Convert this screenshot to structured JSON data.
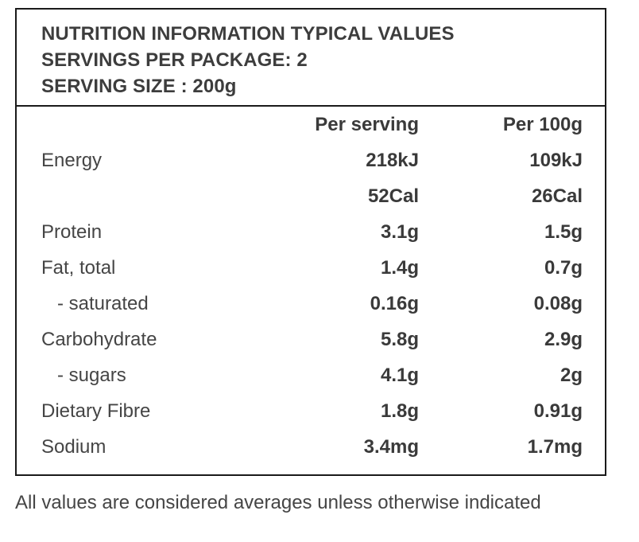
{
  "header": {
    "line1": "NUTRITION INFORMATION TYPICAL VALUES",
    "line2": "SERVINGS PER PACKAGE: 2",
    "line3": "SERVING SIZE : 200g"
  },
  "columns": {
    "per_serving": "Per serving",
    "per_100g": "Per 100g"
  },
  "rows": [
    {
      "name": "Energy",
      "per_serving": "218kJ",
      "per_100g": "109kJ"
    },
    {
      "name": "",
      "per_serving": "52Cal",
      "per_100g": "26Cal"
    },
    {
      "name": "Protein",
      "per_serving": "3.1g",
      "per_100g": "1.5g"
    },
    {
      "name": "Fat, total",
      "per_serving": "1.4g",
      "per_100g": "0.7g"
    },
    {
      "name": "- saturated",
      "per_serving": "0.16g",
      "per_100g": "0.08g"
    },
    {
      "name": "Carbohydrate",
      "per_serving": "5.8g",
      "per_100g": "2.9g"
    },
    {
      "name": "- sugars",
      "per_serving": "4.1g",
      "per_100g": "2g"
    },
    {
      "name": "Dietary Fibre",
      "per_serving": "1.8g",
      "per_100g": "0.91g"
    },
    {
      "name": "Sodium",
      "per_serving": "3.4mg",
      "per_100g": "1.7mg"
    }
  ],
  "footnote": "All values are considered averages unless otherwise indicated"
}
